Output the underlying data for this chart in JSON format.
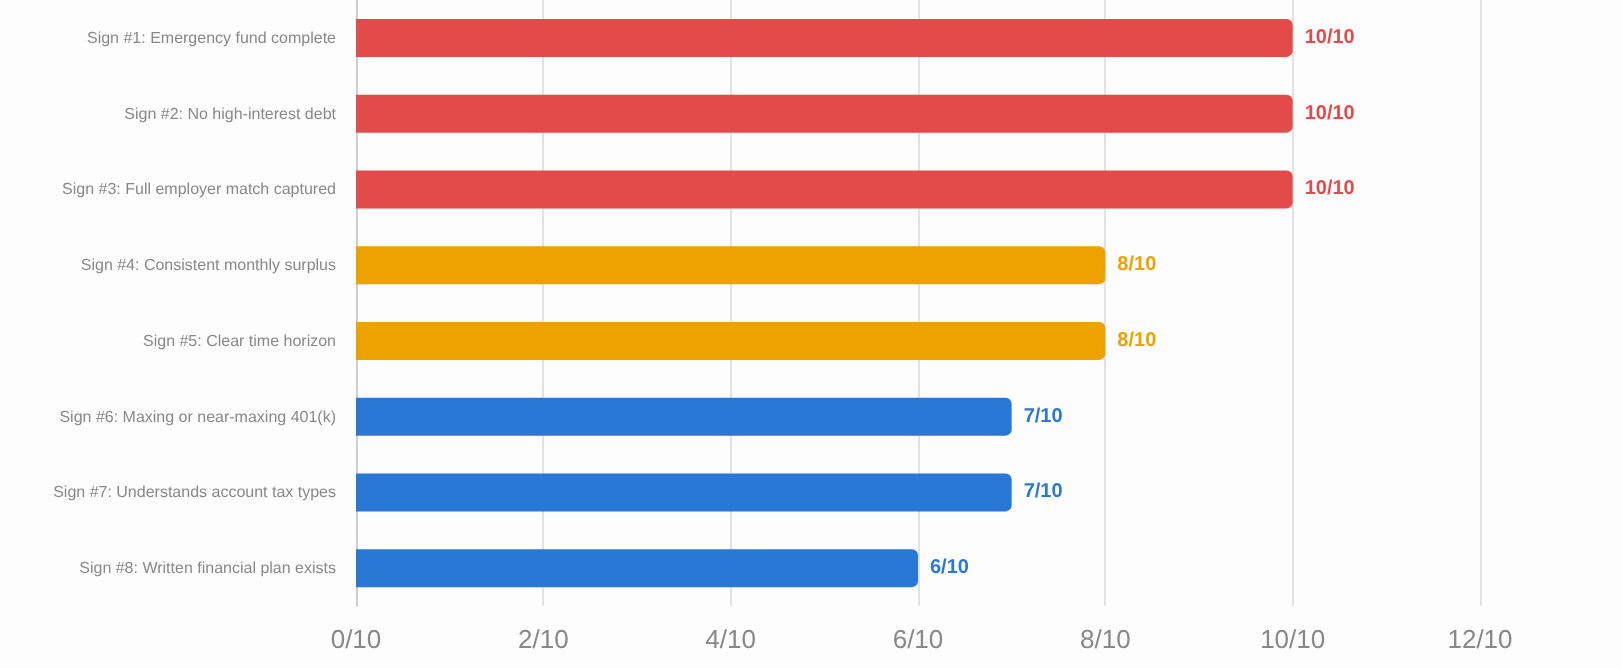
{
  "chart_data": {
    "type": "bar",
    "orientation": "horizontal",
    "categories": [
      "Sign #1: Emergency fund complete",
      "Sign #2: No high-interest debt",
      "Sign #3: Full employer match captured",
      "Sign #4: Consistent monthly surplus",
      "Sign #5: Clear time horizon",
      "Sign #6: Maxing or near-maxing 401(k)",
      "Sign #7: Understands account tax types",
      "Sign #8: Written financial plan exists"
    ],
    "values": [
      1,
      1,
      1,
      0.8,
      0.8,
      0.7,
      0.7,
      0.6
    ],
    "colors": [
      "#e34b4b",
      "#e34b4b",
      "#e34b4b",
      "#eea200",
      "#eea200",
      "#2a78d6",
      "#2a78d6",
      "#2a78d6"
    ],
    "value_labels": [
      "10/10",
      "10/10",
      "10/10",
      "8/10",
      "8/10",
      "7/10",
      "7/10",
      "6/10"
    ],
    "xlim": [
      0,
      1.2
    ],
    "xticks": [
      {
        "value": 0,
        "label": "0/10"
      },
      {
        "value": 0.2,
        "label": "2/10"
      },
      {
        "value": 0.4,
        "label": "4/10"
      },
      {
        "value": 0.6,
        "label": "6/10"
      },
      {
        "value": 0.8,
        "label": "8/10"
      },
      {
        "value": 1,
        "label": "10/10"
      },
      {
        "value": 1.2,
        "label": "12/10"
      }
    ],
    "grid": "x"
  }
}
